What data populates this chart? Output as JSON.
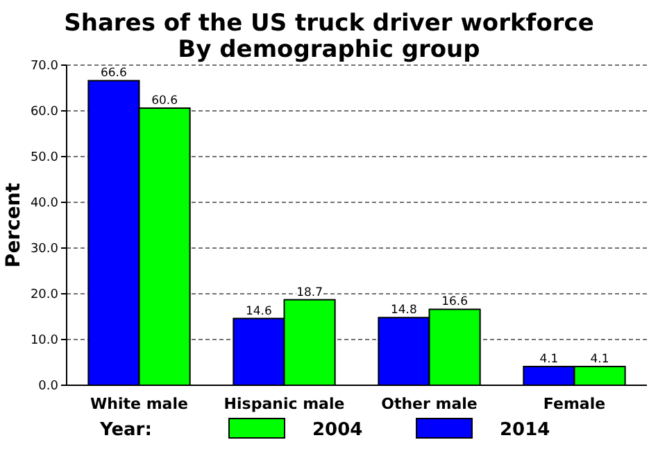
{
  "chart_data": {
    "type": "bar",
    "title": "Shares of the US truck driver workforce",
    "subtitle": "By demographic group",
    "ylabel": "Percent",
    "legend_title": "Year:",
    "categories": [
      "White male",
      "Hispanic male",
      "Other male",
      "Female"
    ],
    "series": [
      {
        "name": "2014",
        "color": "#0000ff",
        "values": [
          66.6,
          14.6,
          14.8,
          4.1
        ]
      },
      {
        "name": "2004",
        "color": "#00ff00",
        "values": [
          60.6,
          18.7,
          16.6,
          4.1
        ]
      }
    ],
    "ylim": [
      0,
      70
    ],
    "yticks": [
      {
        "value": 0,
        "label": "0.0"
      },
      {
        "value": 10,
        "label": "10.0"
      },
      {
        "value": 20,
        "label": "20.0"
      },
      {
        "value": 30,
        "label": "30.0"
      },
      {
        "value": 40,
        "label": "40.0"
      },
      {
        "value": 50,
        "label": "50.0"
      },
      {
        "value": 60,
        "label": "60.0"
      },
      {
        "value": 70,
        "label": "70.0"
      }
    ],
    "grid": "y",
    "legend": "bottom",
    "data_labels": true
  }
}
